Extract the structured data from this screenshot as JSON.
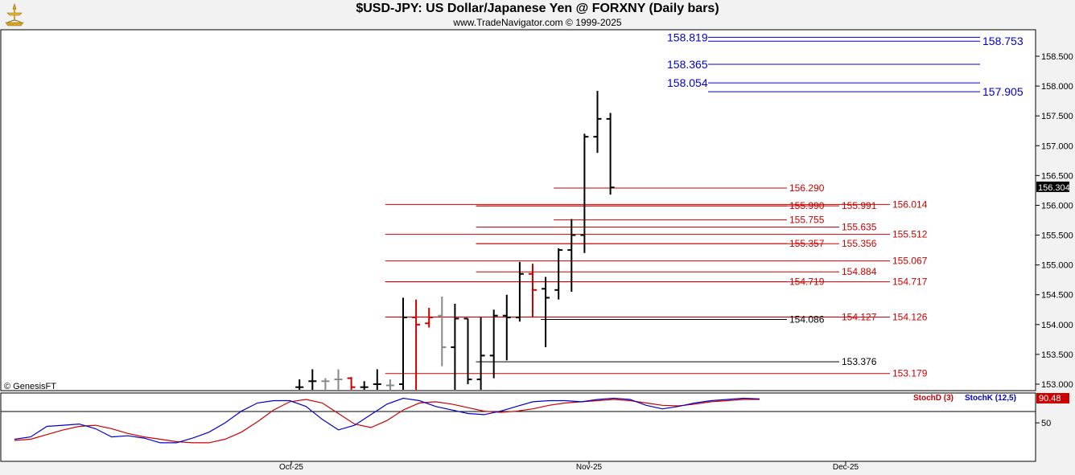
{
  "header": {
    "title": "$USD-JPY:  US Dollar/Japanese Yen @ FORXNY  (Daily bars)",
    "subtitle": "www.TradeNavigator.com © 1999-2025"
  },
  "watermark": "© GenesisFT",
  "colors": {
    "background": "#ffffff",
    "panel_border": "#000000",
    "blue_level": "#0000cc",
    "red_level": "#cc0000",
    "bar_up": "#000000",
    "bar_down": "#cc0000",
    "bar_gray": "#888888",
    "price_tag_bg": "#000000",
    "stoch_tag_bg": "#cc0000"
  },
  "chart_data": [
    {
      "type": "ohlc",
      "ylim": [
        152.9,
        159.2
      ],
      "yticks": [
        "153.000",
        "153.500",
        "154.000",
        "154.500",
        "155.000",
        "155.500",
        "156.000",
        "156.500",
        "157.000",
        "157.500",
        "158.000",
        "158.500"
      ],
      "xticks": [
        "Oct-25",
        "Nov-25",
        "Dec-25"
      ],
      "last_price": "156.304",
      "bars": [
        {
          "d": 22,
          "h": 153.08,
          "l": 152.9,
          "c": 152.95,
          "o": 152.95,
          "col": "up"
        },
        {
          "d": 23,
          "h": 153.25,
          "l": 152.9,
          "c": 153.05,
          "o": 153.05,
          "col": "up"
        },
        {
          "d": 24,
          "h": 153.1,
          "l": 152.9,
          "c": 153.05,
          "o": 153.05,
          "col": "gray"
        },
        {
          "d": 25,
          "h": 153.25,
          "l": 152.9,
          "c": 153.08,
          "o": 153.08,
          "col": "gray"
        },
        {
          "d": 26,
          "h": 153.12,
          "l": 152.9,
          "c": 152.95,
          "o": 153.1,
          "col": "down"
        },
        {
          "d": 27,
          "h": 153.05,
          "l": 152.9,
          "c": 152.95,
          "o": 152.95,
          "col": "up"
        },
        {
          "d": 28,
          "h": 153.25,
          "l": 152.9,
          "c": 153.0,
          "o": 153.0,
          "col": "up"
        },
        {
          "d": 29,
          "h": 153.08,
          "l": 152.9,
          "c": 152.98,
          "o": 152.98,
          "col": "gray"
        },
        {
          "d": 30,
          "h": 154.45,
          "l": 152.9,
          "c": 154.12,
          "o": 153.0,
          "col": "up"
        },
        {
          "d": 31,
          "h": 154.42,
          "l": 152.9,
          "c": 154.0,
          "o": 154.12,
          "col": "down"
        },
        {
          "d": 32,
          "h": 154.28,
          "l": 153.95,
          "c": 154.12,
          "o": 154.02,
          "col": "down"
        },
        {
          "d": 33,
          "h": 154.47,
          "l": 153.3,
          "c": 153.62,
          "o": 154.15,
          "col": "gray"
        },
        {
          "d": 34,
          "h": 154.35,
          "l": 152.9,
          "c": 154.1,
          "o": 153.62,
          "col": "up"
        },
        {
          "d": 35,
          "h": 154.1,
          "l": 153.0,
          "c": 153.08,
          "o": 154.1,
          "col": "up"
        },
        {
          "d": 36,
          "h": 154.12,
          "l": 152.9,
          "c": 153.48,
          "o": 153.08,
          "col": "up"
        },
        {
          "d": 37,
          "h": 154.25,
          "l": 153.1,
          "c": 154.15,
          "o": 153.48,
          "col": "up"
        },
        {
          "d": 38,
          "h": 154.5,
          "l": 153.4,
          "c": 154.12,
          "o": 154.15,
          "col": "up"
        },
        {
          "d": 39,
          "h": 155.05,
          "l": 154.05,
          "c": 154.85,
          "o": 154.12,
          "col": "up"
        },
        {
          "d": 40,
          "h": 155.02,
          "l": 154.12,
          "c": 154.58,
          "o": 154.85,
          "col": "down"
        },
        {
          "d": 41,
          "h": 154.8,
          "l": 153.62,
          "c": 154.45,
          "o": 154.6,
          "col": "up"
        },
        {
          "d": 42,
          "h": 155.28,
          "l": 154.42,
          "c": 155.25,
          "o": 154.58,
          "col": "up"
        },
        {
          "d": 43,
          "h": 155.77,
          "l": 154.55,
          "c": 155.5,
          "o": 155.25,
          "col": "up"
        },
        {
          "d": 44,
          "h": 157.2,
          "l": 155.2,
          "c": 157.15,
          "o": 155.5,
          "col": "up"
        },
        {
          "d": 45,
          "h": 157.92,
          "l": 156.88,
          "c": 157.45,
          "o": 157.15,
          "col": "up"
        },
        {
          "d": 46,
          "h": 157.55,
          "l": 156.18,
          "c": 156.3,
          "o": 157.45,
          "col": "up"
        }
      ],
      "levels": [
        {
          "value": "158.819",
          "price": 158.819,
          "color": "blue",
          "from": 52,
          "side": "left"
        },
        {
          "value": "158.753",
          "price": 158.753,
          "color": "blue",
          "from": 52,
          "side": "right"
        },
        {
          "value": "158.365",
          "price": 158.365,
          "color": "blue",
          "from": 52,
          "side": "left"
        },
        {
          "value": "158.054",
          "price": 158.054,
          "color": "blue",
          "from": 52,
          "side": "left"
        },
        {
          "value": "157.905",
          "price": 157.905,
          "color": "blue",
          "from": 52,
          "side": "right"
        },
        {
          "value": "156.290",
          "price": 156.29,
          "color": "red",
          "from": 42,
          "side": "mid1"
        },
        {
          "value": "156.014",
          "price": 156.014,
          "color": "red",
          "from": 29,
          "side": "mid3"
        },
        {
          "value": "155.990",
          "price": 155.99,
          "color": "red",
          "from": 36,
          "side": "mid1"
        },
        {
          "value": "155.991",
          "price": 155.991,
          "color": "red",
          "from": 36,
          "side": "mid2"
        },
        {
          "value": "155.755",
          "price": 155.755,
          "color": "red",
          "from": 42,
          "side": "mid1"
        },
        {
          "value": "155.635",
          "price": 155.635,
          "color": "red",
          "from": 36,
          "side": "mid2"
        },
        {
          "value": "155.512",
          "price": 155.512,
          "color": "red",
          "from": 29,
          "side": "mid3"
        },
        {
          "value": "155.357",
          "price": 155.357,
          "color": "red",
          "from": 36,
          "side": "mid1"
        },
        {
          "value": "155.356",
          "price": 155.356,
          "color": "red",
          "from": 36,
          "side": "mid2"
        },
        {
          "value": "155.067",
          "price": 155.067,
          "color": "red",
          "from": 29,
          "side": "mid3"
        },
        {
          "value": "154.884",
          "price": 154.884,
          "color": "red",
          "from": 36,
          "side": "mid2"
        },
        {
          "value": "154.719",
          "price": 154.719,
          "color": "red",
          "from": 29,
          "side": "mid1"
        },
        {
          "value": "154.717",
          "price": 154.717,
          "color": "red",
          "from": 29,
          "side": "mid3"
        },
        {
          "value": "154.127",
          "price": 154.127,
          "color": "red",
          "from": 29,
          "side": "mid2"
        },
        {
          "value": "154.126",
          "price": 154.126,
          "color": "red",
          "from": 29,
          "side": "mid3"
        },
        {
          "value": "154.086",
          "price": 154.086,
          "color": "black",
          "from": 41,
          "side": "mid1"
        },
        {
          "value": "153.376",
          "price": 153.376,
          "color": "black",
          "from": 36,
          "side": "mid2"
        },
        {
          "value": "153.179",
          "price": 153.179,
          "color": "red",
          "from": 29,
          "side": "mid3"
        }
      ]
    },
    {
      "type": "line",
      "ylim": [
        0,
        100
      ],
      "yticks": [
        "50"
      ],
      "legend": [
        "StochD (3)",
        "StochK (12,5)"
      ],
      "last_value": "90.48",
      "series": [
        {
          "name": "StochD (3)",
          "color": "red",
          "values": [
            20,
            22,
            30,
            38,
            44,
            46,
            40,
            32,
            26,
            22,
            18,
            16,
            16,
            22,
            34,
            52,
            72,
            86,
            90,
            84,
            66,
            48,
            42,
            54,
            72,
            84,
            86,
            82,
            76,
            70,
            68,
            70,
            74,
            80,
            84,
            86,
            88,
            90,
            88,
            84,
            80,
            79,
            82,
            86,
            88,
            90,
            90
          ]
        },
        {
          "name": "StochK (12,5)",
          "color": "blue",
          "values": [
            22,
            26,
            44,
            46,
            48,
            40,
            26,
            28,
            24,
            16,
            16,
            24,
            34,
            50,
            70,
            84,
            88,
            88,
            78,
            56,
            38,
            46,
            64,
            82,
            92,
            88,
            78,
            72,
            66,
            64,
            70,
            78,
            86,
            88,
            88,
            86,
            90,
            92,
            90,
            80,
            74,
            78,
            84,
            88,
            90,
            92,
            91
          ]
        }
      ]
    }
  ]
}
